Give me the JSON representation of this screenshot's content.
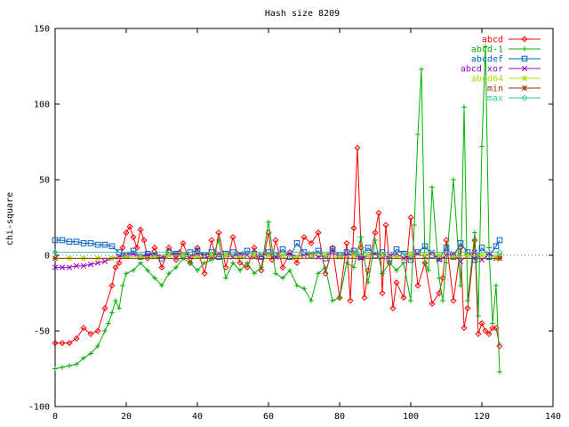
{
  "chart_data": {
    "type": "line",
    "title": "Hash size 8209",
    "xlabel": "",
    "ylabel": "chi-square",
    "xlim": [
      0,
      140
    ],
    "ylim": [
      -100,
      150
    ],
    "xticks": [
      0,
      20,
      40,
      60,
      80,
      100,
      120,
      140
    ],
    "yticks": [
      -100,
      -50,
      0,
      50,
      100,
      150
    ],
    "grid": false,
    "legend_position": "top-right",
    "series": [
      {
        "name": "abcd",
        "color": "#ff0000",
        "marker": "diamond",
        "x": [
          0,
          2,
          4,
          6,
          8,
          10,
          12,
          14,
          16,
          17,
          18,
          19,
          20,
          21,
          22,
          23,
          24,
          25,
          26,
          28,
          30,
          32,
          34,
          35,
          36,
          38,
          40,
          42,
          44,
          45,
          46,
          48,
          50,
          52,
          54,
          56,
          58,
          60,
          61,
          62,
          64,
          66,
          68,
          70,
          72,
          74,
          76,
          78,
          80,
          82,
          83,
          84,
          85,
          86,
          87,
          88,
          90,
          91,
          92,
          93,
          94,
          95,
          96,
          98,
          100,
          102,
          104,
          106,
          108,
          109,
          110,
          112,
          114,
          115,
          116,
          118,
          119,
          120,
          121,
          122,
          123,
          124,
          125
        ],
        "y": [
          -58,
          -58,
          -58,
          -55,
          -48,
          -52,
          -50,
          -35,
          -20,
          -8,
          -5,
          5,
          15,
          19,
          12,
          5,
          17,
          10,
          -2,
          5,
          -8,
          5,
          -3,
          2,
          8,
          -5,
          5,
          -12,
          10,
          0,
          15,
          -8,
          12,
          -5,
          -8,
          5,
          -10,
          15,
          -3,
          10,
          -8,
          2,
          -5,
          12,
          8,
          15,
          -12,
          5,
          -28,
          8,
          -30,
          18,
          71,
          5,
          -28,
          -10,
          15,
          28,
          -25,
          20,
          -5,
          -35,
          -18,
          -28,
          25,
          -20,
          -5,
          -32,
          -25,
          -15,
          10,
          -30,
          5,
          -48,
          -35,
          10,
          -52,
          -45,
          -50,
          -52,
          -48,
          -48,
          -60
        ]
      },
      {
        "name": "abcd-1",
        "color": "#00b000",
        "marker": "plus",
        "x": [
          0,
          2,
          4,
          6,
          8,
          10,
          12,
          14,
          15,
          16,
          17,
          18,
          19,
          20,
          22,
          24,
          26,
          28,
          30,
          32,
          34,
          36,
          38,
          40,
          42,
          44,
          46,
          48,
          50,
          52,
          54,
          56,
          58,
          60,
          62,
          64,
          66,
          68,
          70,
          72,
          74,
          76,
          78,
          80,
          82,
          84,
          86,
          88,
          90,
          92,
          94,
          96,
          98,
          100,
          101,
          102,
          103,
          104,
          105,
          106,
          108,
          109,
          110,
          112,
          114,
          115,
          116,
          118,
          119,
          120,
          121,
          122,
          123,
          124,
          125
        ],
        "y": [
          -75,
          -74,
          -73,
          -72,
          -68,
          -65,
          -60,
          -50,
          -45,
          -38,
          -30,
          -35,
          -20,
          -12,
          -10,
          -5,
          -10,
          -15,
          -20,
          -12,
          -8,
          -2,
          -5,
          -10,
          -5,
          -3,
          10,
          -15,
          -5,
          -10,
          -5,
          -12,
          -8,
          22,
          -12,
          -15,
          -10,
          -20,
          -22,
          -30,
          -12,
          -8,
          -30,
          -28,
          -5,
          -8,
          12,
          -18,
          10,
          -12,
          -5,
          -10,
          -5,
          -30,
          20,
          80,
          123,
          -5,
          -10,
          45,
          -15,
          -30,
          -5,
          50,
          -20,
          98,
          -30,
          15,
          -40,
          72,
          138,
          5,
          -45,
          -20,
          -77
        ]
      },
      {
        "name": "abcdef",
        "color": "#0060c0",
        "marker": "square",
        "x": [
          0,
          2,
          4,
          6,
          8,
          10,
          12,
          14,
          16,
          18,
          20,
          22,
          24,
          26,
          28,
          30,
          32,
          34,
          36,
          38,
          40,
          42,
          44,
          46,
          48,
          50,
          52,
          54,
          56,
          58,
          60,
          62,
          64,
          66,
          68,
          70,
          72,
          74,
          76,
          78,
          80,
          82,
          84,
          86,
          88,
          90,
          92,
          94,
          96,
          98,
          100,
          102,
          104,
          106,
          108,
          110,
          112,
          114,
          116,
          118,
          120,
          122,
          124,
          125
        ],
        "y": [
          10,
          10,
          9,
          9,
          8,
          8,
          7,
          7,
          6,
          2,
          0,
          3,
          -1,
          1,
          0,
          -2,
          2,
          1,
          0,
          2,
          3,
          0,
          2,
          -1,
          1,
          2,
          0,
          3,
          1,
          -1,
          2,
          0,
          4,
          -1,
          8,
          2,
          0,
          3,
          -2,
          4,
          0,
          2,
          3,
          -1,
          5,
          0,
          2,
          -2,
          4,
          1,
          -3,
          2,
          6,
          0,
          -2,
          5,
          -1,
          8,
          2,
          -3,
          5,
          -1,
          6,
          10
        ]
      },
      {
        "name": "abcd xor",
        "color": "#9900cc",
        "marker": "x",
        "x": [
          0,
          2,
          4,
          6,
          8,
          10,
          12,
          14,
          16,
          18,
          20,
          22,
          24,
          26,
          28,
          30,
          32,
          34,
          36,
          38,
          40,
          42,
          44,
          46,
          48,
          50,
          52,
          54,
          56,
          58,
          60,
          62,
          64,
          66,
          68,
          70,
          72,
          74,
          76,
          78,
          80,
          82,
          84,
          86,
          88,
          90,
          92,
          94,
          96,
          98,
          100,
          102,
          104,
          106,
          108,
          110,
          112,
          114,
          116,
          118,
          120,
          122,
          124,
          125
        ],
        "y": [
          -8,
          -8,
          -8,
          -7,
          -7,
          -6,
          -5,
          -4,
          -2,
          -1,
          0,
          1,
          -1,
          0,
          1,
          -1,
          0,
          1,
          0,
          -1,
          1,
          0,
          -1,
          1,
          0,
          -1,
          1,
          0,
          -1,
          0,
          1,
          -1,
          0,
          1,
          -1,
          0,
          1,
          -1,
          0,
          2,
          -1,
          0,
          1,
          -2,
          0,
          1,
          -1,
          0,
          1,
          -2,
          0,
          1,
          -1,
          2,
          -3,
          0,
          1,
          -4,
          0,
          2,
          -3,
          1,
          -2,
          0
        ]
      },
      {
        "name": "abcd64",
        "color": "#aadd00",
        "marker": "star",
        "x": [
          0,
          4,
          8,
          12,
          16,
          20,
          24,
          28,
          32,
          36,
          40,
          44,
          48,
          52,
          56,
          60,
          64,
          68,
          72,
          76,
          80,
          84,
          88,
          92,
          96,
          100,
          104,
          108,
          112,
          116,
          120,
          124,
          125
        ],
        "y": [
          -2,
          -2,
          -2,
          -2,
          -2,
          -1,
          -1,
          -1,
          0,
          0,
          -1,
          0,
          0,
          -1,
          0,
          0,
          0,
          -1,
          0,
          0,
          -1,
          0,
          0,
          0,
          -1,
          0,
          0,
          0,
          -1,
          0,
          0,
          -1,
          -1
        ]
      },
      {
        "name": "min",
        "color": "#993300",
        "marker": "asterisk",
        "x": [
          0,
          125
        ],
        "y": [
          -2,
          -2
        ]
      },
      {
        "name": "max",
        "color": "#33cc99",
        "marker": "diamond",
        "x": [
          0,
          125
        ],
        "y": [
          2,
          2
        ]
      }
    ]
  }
}
